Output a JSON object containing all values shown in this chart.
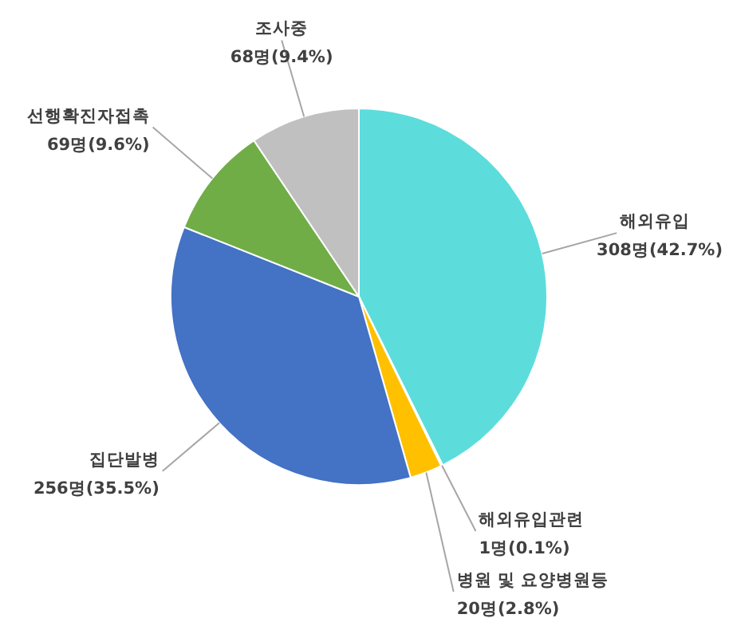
{
  "chart_data": {
    "type": "pie",
    "categories": [
      "해외유입",
      "해외유입관련",
      "병원 및 요양병원등",
      "집단발병",
      "선행확진자접촉",
      "조사중"
    ],
    "values": [
      308,
      1,
      20,
      256,
      69,
      68
    ],
    "value_labels": [
      "308명(42.7%)",
      "1명(0.1%)",
      "20명(2.8%)",
      "256명(35.5%)",
      "69명(9.6%)",
      "68명(9.4%)"
    ],
    "colors": [
      "#5ddcdc",
      "#ed7d31",
      "#ffc000",
      "#4472c4",
      "#70ad47",
      "#c0c0c0"
    ]
  }
}
